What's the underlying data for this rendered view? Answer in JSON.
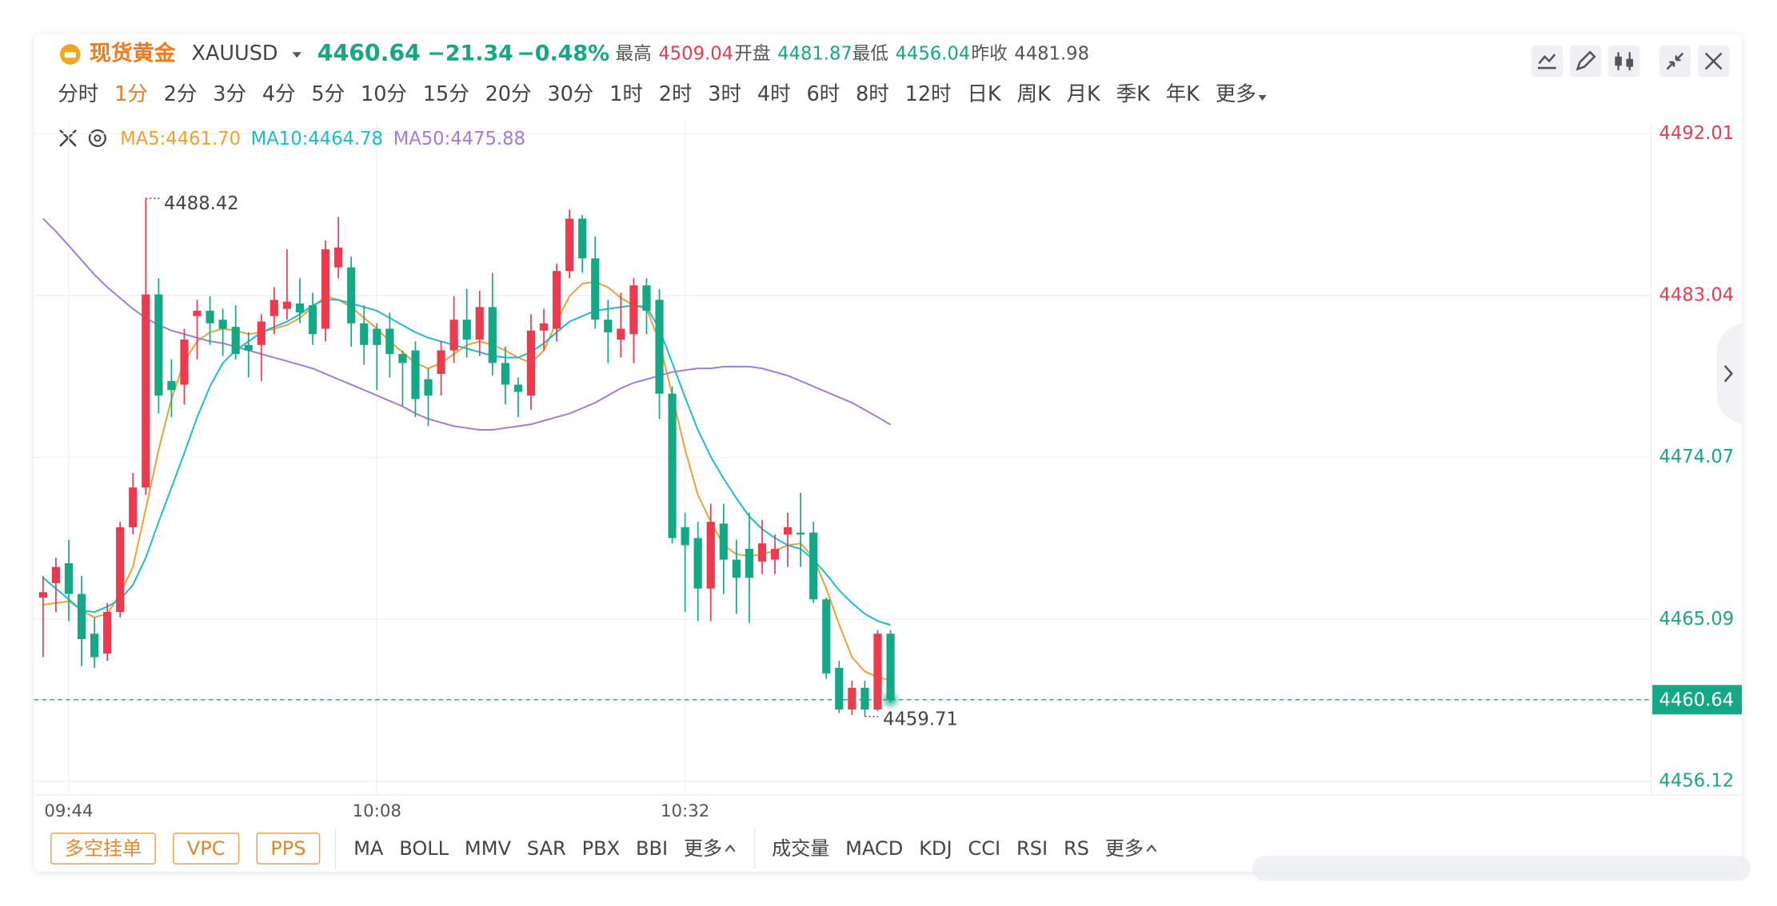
{
  "header": {
    "name": "现货黄金",
    "symbol": "XAUUSD",
    "price": "4460.64",
    "change": "−21.34",
    "change_pct": "−0.48%",
    "stats": [
      {
        "label": "最高",
        "value": "4509.04"
      },
      {
        "label": "开盘",
        "value": "4481.87"
      },
      {
        "label": "最低",
        "value": "4456.04"
      },
      {
        "label": "昨收",
        "value": "4481.98"
      }
    ]
  },
  "timeframes": {
    "items": [
      "分时",
      "1分",
      "2分",
      "3分",
      "4分",
      "5分",
      "10分",
      "15分",
      "20分",
      "30分",
      "1时",
      "2时",
      "3时",
      "4时",
      "6时",
      "8时",
      "12时",
      "日K",
      "周K",
      "月K",
      "季K",
      "年K",
      "更多"
    ],
    "active": 1
  },
  "toolbar": {
    "buttons": [
      "多空挂单",
      "VPC",
      "PPS"
    ],
    "main_indicators": [
      "MA",
      "BOLL",
      "MMV",
      "SAR",
      "PBX",
      "BBI",
      "更多"
    ],
    "sub_indicators": [
      "成交量",
      "MACD",
      "KDJ",
      "CCI",
      "RSI",
      "RS",
      "更多"
    ]
  },
  "chart_data": {
    "type": "candlestick",
    "up_color": "#ec3a4e",
    "down_color": "#15a886",
    "categories": [
      null,
      null,
      "09:44",
      null,
      null,
      null,
      null,
      null,
      null,
      null,
      null,
      null,
      null,
      null,
      null,
      null,
      null,
      null,
      null,
      null,
      null,
      null,
      null,
      null,
      null,
      null,
      "10:08",
      null,
      null,
      null,
      null,
      null,
      null,
      null,
      null,
      null,
      null,
      null,
      null,
      null,
      null,
      null,
      null,
      null,
      null,
      null,
      null,
      null,
      null,
      null,
      "10:32",
      null,
      null,
      null,
      null,
      null,
      null,
      null,
      null,
      null,
      null,
      null,
      null,
      null,
      null,
      null,
      null
    ],
    "open": [
      4466.3,
      4467.1,
      4468.2,
      4466.5,
      4464.3,
      4463.2,
      4465.5,
      4470.2,
      4472.4,
      4483.1,
      4478.3,
      4478.1,
      4481.9,
      4482.2,
      4481.7,
      4481.3,
      4480.3,
      4480.3,
      4481.9,
      4482.3,
      4482.6,
      4482.5,
      4481.2,
      4484.6,
      4484.6,
      4481.5,
      4481.2,
      4481.2,
      4479.8,
      4480.0,
      4478.4,
      4478.7,
      4480.0,
      4481.7,
      4480.6,
      4482.4,
      4479.3,
      4478.1,
      4477.5,
      4481.1,
      4481.2,
      4484.4,
      4487.3,
      4485.1,
      4481.7,
      4480.6,
      4480.9,
      4483.6,
      4482.8,
      4477.6,
      4470.2,
      4469.6,
      4466.8,
      4470.4,
      4468.4,
      4469.0,
      4468.3,
      4468.4,
      4469.8,
      4469.9,
      4469.9,
      4466.2,
      4462.4,
      4460.1,
      4461.3,
      4460.1,
      4464.3
    ],
    "high": [
      4467.5,
      4468.5,
      4469.5,
      4467.5,
      4465.2,
      4466.0,
      4470.5,
      4473.2,
      4488.42,
      4484.0,
      4479.5,
      4481.2,
      4482.8,
      4483.0,
      4482.3,
      4482.5,
      4481.0,
      4482.0,
      4483.5,
      4485.6,
      4484.0,
      4483.2,
      4486.1,
      4487.4,
      4485.2,
      4482.5,
      4481.5,
      4482.1,
      4480.0,
      4480.5,
      4479.0,
      4480.5,
      4483.0,
      4483.4,
      4483.3,
      4484.3,
      4480.2,
      4478.5,
      4482.0,
      4482.3,
      4484.8,
      4487.8,
      4487.5,
      4486.3,
      4482.8,
      4483.2,
      4484.0,
      4484.0,
      4483.4,
      4478.0,
      4471.0,
      4470.5,
      4471.5,
      4471.5,
      4469.5,
      4471.0,
      4470.6,
      4469.8,
      4471.0,
      4472.1,
      4470.5,
      4466.3,
      4462.8,
      4461.7,
      4461.7,
      4464.5,
      4464.5
    ],
    "low": [
      4463.0,
      4465.5,
      4465.0,
      4462.5,
      4462.4,
      4462.8,
      4465.2,
      4469.8,
      4472.0,
      4476.5,
      4476.3,
      4477.0,
      4479.5,
      4480.3,
      4479.7,
      4479.5,
      4478.5,
      4478.3,
      4480.9,
      4481.7,
      4481.5,
      4480.3,
      4480.5,
      4484.0,
      4480.2,
      4479.2,
      4477.8,
      4478.5,
      4476.9,
      4476.3,
      4475.8,
      4477.5,
      4479.3,
      4479.6,
      4479.7,
      4478.6,
      4477.0,
      4476.3,
      4476.7,
      4480.0,
      4480.5,
      4484.0,
      4484.3,
      4481.2,
      4479.3,
      4479.6,
      4479.3,
      4480.9,
      4476.2,
      4469.3,
      4465.5,
      4465.0,
      4465.0,
      4466.5,
      4465.4,
      4464.9,
      4467.6,
      4467.6,
      4468.0,
      4468.0,
      4466.0,
      4461.8,
      4459.9,
      4459.8,
      4459.71,
      4460.0,
      4460.5
    ],
    "close": [
      4466.6,
      4468.0,
      4466.5,
      4464.0,
      4463.0,
      4465.5,
      4470.2,
      4472.4,
      4483.1,
      4477.5,
      4477.8,
      4480.6,
      4482.2,
      4481.5,
      4481.2,
      4479.8,
      4480.0,
      4481.6,
      4482.8,
      4482.7,
      4482.1,
      4480.9,
      4485.6,
      4485.7,
      4481.5,
      4480.3,
      4480.3,
      4479.8,
      4479.3,
      4477.3,
      4477.5,
      4480.0,
      4481.7,
      4480.6,
      4482.4,
      4479.3,
      4478.1,
      4477.7,
      4481.1,
      4481.5,
      4484.4,
      4487.3,
      4485.1,
      4481.7,
      4481.0,
      4481.2,
      4483.6,
      4482.2,
      4477.6,
      4469.6,
      4469.2,
      4466.8,
      4470.5,
      4468.4,
      4467.4,
      4467.4,
      4469.3,
      4469.0,
      4470.2,
      4469.8,
      4466.2,
      4462.1,
      4460.1,
      4461.3,
      4460.1,
      4464.3,
      4460.64
    ],
    "lines": [
      {
        "name": "MA5",
        "label": "MA5:4461.70",
        "color": "#f0a030",
        "values": [
          4465.9,
          4466.0,
          4466.1,
          4465.6,
          4465.2,
          4465.4,
          4466.5,
          4468.0,
          4471.2,
          4474.5,
          4477.3,
          4479.4,
          4480.5,
          4481.0,
          4481.2,
          4481.1,
          4480.9,
          4481.0,
          4481.2,
          4481.4,
          4481.8,
          4482.4,
          4483.0,
          4482.8,
          4482.4,
          4481.8,
          4481.2,
          4480.5,
          4479.9,
          4479.3,
          4479.0,
          4479.3,
          4479.8,
          4480.3,
          4480.5,
          4480.3,
          4480.0,
          4479.6,
          4479.3,
          4480.0,
          4481.6,
          4483.0,
          4483.7,
          4483.8,
          4483.5,
          4482.9,
          4482.5,
          4482.3,
          4480.5,
          4477.5,
          4474.5,
          4472.0,
          4470.5,
          4469.2,
          4468.7,
          4468.6,
          4468.7,
          4468.9,
          4469.2,
          4469.3,
          4468.5,
          4466.8,
          4464.8,
          4463.0,
          4462.2,
          4461.9,
          4461.7
        ]
      },
      {
        "name": "MA10",
        "label": "MA10:4464.78",
        "color": "#1bbcd3",
        "values": [
          4467.4,
          4466.8,
          4466.2,
          4465.6,
          4465.5,
          4465.8,
          4466.2,
          4467.0,
          4468.5,
          4470.5,
          4472.4,
          4474.3,
          4476.3,
          4478.0,
          4479.3,
          4480.0,
          4480.5,
          4481.0,
          4481.3,
          4481.6,
          4482.0,
          4482.5,
          4482.8,
          4482.8,
          4482.6,
          4482.4,
          4482.2,
          4481.8,
          4481.4,
          4481.0,
          4480.7,
          4480.5,
          4480.3,
          4480.1,
          4479.9,
          4479.7,
          4479.6,
          4479.6,
          4479.9,
          4480.4,
          4481.0,
          4481.6,
          4481.9,
          4482.2,
          4482.3,
          4482.4,
          4482.5,
          4482.4,
          4481.2,
          4479.3,
          4477.4,
          4475.6,
          4474.1,
          4472.9,
          4471.8,
          4470.8,
          4470.1,
          4469.6,
          4469.2,
          4469.0,
          4468.4,
          4467.6,
          4466.7,
          4466.0,
          4465.4,
          4465.0,
          4464.78
        ]
      },
      {
        "name": "MA50",
        "label": "MA50:4475.88",
        "color": "#a47ad8",
        "values": [
          4487.3,
          4486.6,
          4485.8,
          4485.0,
          4484.2,
          4483.5,
          4482.9,
          4482.3,
          4481.8,
          4481.4,
          4481.1,
          4480.9,
          4480.7,
          4480.5,
          4480.4,
          4480.2,
          4480.0,
          4479.8,
          4479.6,
          4479.4,
          4479.2,
          4479.0,
          4478.7,
          4478.4,
          4478.1,
          4477.8,
          4477.5,
          4477.2,
          4476.9,
          4476.5,
          4476.2,
          4476.0,
          4475.8,
          4475.7,
          4475.6,
          4475.6,
          4475.7,
          4475.8,
          4475.9,
          4476.1,
          4476.3,
          4476.5,
          4476.8,
          4477.1,
          4477.5,
          4477.9,
          4478.2,
          4478.4,
          4478.6,
          4478.8,
          4478.9,
          4479.0,
          4479.0,
          4479.1,
          4479.1,
          4479.1,
          4479.0,
          4478.8,
          4478.6,
          4478.3,
          4478.0,
          4477.7,
          4477.4,
          4477.1,
          4476.7,
          4476.3,
          4475.88
        ]
      }
    ],
    "ylim": [
      4455.37,
      4492.64
    ],
    "yticks": [
      4492.01,
      4483.04,
      4474.07,
      4465.09,
      4456.12
    ],
    "grid": true,
    "max_label": 4488.42,
    "min_label": 4459.71,
    "last_price": 4460.64
  }
}
